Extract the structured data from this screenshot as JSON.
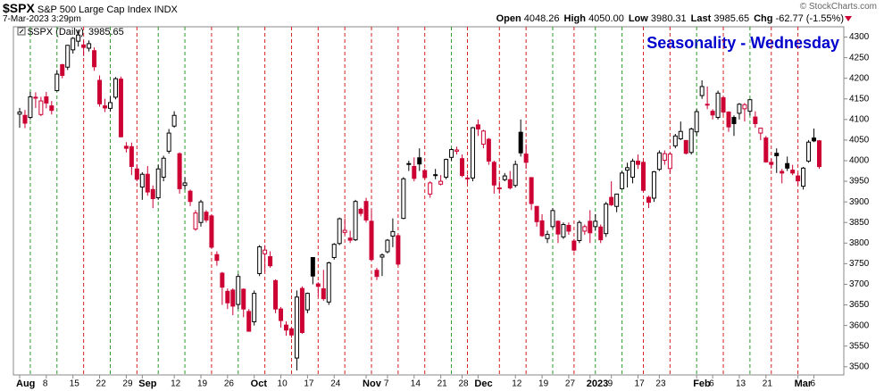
{
  "header": {
    "symbol": "$SPX",
    "name": "S&P 500 Large Cap Index",
    "exchange": "INDX",
    "timestamp": "7-Mar-2023 3:29pm",
    "copyright": "© StockCharts.com",
    "stats": [
      {
        "label": "Open",
        "value": "4048.26"
      },
      {
        "label": "High",
        "value": "4050.00"
      },
      {
        "label": "Low",
        "value": "3980.31"
      },
      {
        "label": "Last",
        "value": "3985.65"
      },
      {
        "label": "Chg",
        "value": "-62.77 (-1.55%)"
      }
    ]
  },
  "chart_data": {
    "type": "candlestick",
    "title": "Seasonality - Wednesday",
    "legend": "$SPX (Daily)",
    "legend_value": 3985.65,
    "up_color": "#000000",
    "down_color": "#cc0033",
    "ylim": [
      3480,
      4325
    ],
    "yticks": [
      3500,
      3550,
      3600,
      3650,
      3700,
      3750,
      3800,
      3850,
      3900,
      3950,
      4000,
      4050,
      4100,
      4150,
      4200,
      4250,
      4300
    ],
    "categories": [
      "Aug",
      null,
      null,
      null,
      null,
      "8",
      null,
      null,
      null,
      null,
      "15",
      null,
      null,
      null,
      null,
      "22",
      null,
      null,
      null,
      null,
      "29",
      null,
      null,
      "Sep",
      null,
      null,
      null,
      null,
      null,
      "12",
      null,
      null,
      null,
      null,
      "19",
      null,
      null,
      null,
      null,
      "26",
      null,
      null,
      null,
      null,
      "Oct",
      null,
      null,
      null,
      null,
      "10",
      null,
      null,
      null,
      null,
      "17",
      null,
      null,
      null,
      null,
      "24",
      null,
      null,
      null,
      null,
      null,
      "Nov",
      null,
      null,
      null,
      "7",
      null,
      null,
      null,
      null,
      "14",
      null,
      null,
      null,
      null,
      "21",
      null,
      null,
      null,
      "28",
      null,
      null,
      "Dec",
      null,
      null,
      null,
      null,
      null,
      null,
      "12",
      null,
      null,
      null,
      null,
      "19",
      null,
      null,
      null,
      null,
      "27",
      null,
      null,
      null,
      "2023",
      null,
      null,
      null,
      "9",
      null,
      null,
      null,
      null,
      "17",
      null,
      null,
      null,
      "23",
      null,
      null,
      null,
      null,
      null,
      null,
      "Feb",
      null,
      null,
      "6",
      null,
      null,
      null,
      null,
      "13",
      null,
      null,
      null,
      null,
      "21",
      null,
      null,
      null,
      null,
      null,
      "Mar",
      null,
      null,
      "6",
      null
    ],
    "open": [
      4113,
      4110,
      4105,
      4154,
      4112,
      4155,
      4133,
      4170,
      4233,
      4227,
      4269,
      4290,
      4281,
      4273,
      4267,
      4195,
      4133,
      4127,
      4154,
      4198,
      4035,
      4034,
      3980,
      3936,
      3967,
      3930,
      3910,
      3960,
      4023,
      4084,
      4017,
      3940,
      3926,
      3834,
      3850,
      3875,
      3866,
      3772,
      3727,
      3683,
      3686,
      3651,
      3688,
      3634,
      3609,
      3726,
      3774,
      3767,
      3709,
      3640,
      3601,
      3592,
      3521,
      3690,
      3638,
      3765,
      3701,
      3689,
      3657,
      3765,
      3799,
      3826,
      3812,
      3808,
      3882,
      3901,
      3853,
      3734,
      3766,
      3779,
      3817,
      3818,
      3860,
      3993,
      3986,
      4007,
      3976,
      3919,
      3966,
      3943,
      3960,
      4008,
      4023,
      4005,
      3957,
      3958,
      4087,
      4040,
      4052,
      3996,
      3934,
      3954,
      3954,
      3940,
      4069,
      4016,
      3959,
      3889,
      3854,
      3811,
      3840,
      3853,
      3815,
      3843,
      3805,
      3806,
      3829,
      3853,
      3840,
      3839,
      3823,
      3911,
      3889,
      3932,
      3977,
      3960,
      3999,
      3996,
      3911,
      3909,
      3979,
      4001,
      3981,
      4036,
      4053,
      4049,
      4020,
      4070,
      4158,
      4137,
      4120,
      4105,
      4153,
      4118,
      4105,
      4115,
      4126,
      4120,
      4106,
      4067,
      4055,
      3996,
      4018,
      3974,
      3993,
      3977,
      3963,
      3938,
      3999,
      4055,
      4048.26
    ],
    "high": [
      4128,
      4123,
      4167,
      4166,
      4155,
      4167,
      4145,
      4220,
      4235,
      4281,
      4300,
      4318,
      4291,
      4292,
      4275,
      4207,
      4150,
      4156,
      4203,
      4204,
      4045,
      4044,
      3991,
      3972,
      3987,
      3940,
      3990,
      4012,
      4077,
      4120,
      4020,
      3960,
      3930,
      3880,
      3905,
      3880,
      3870,
      3780,
      3730,
      3690,
      3690,
      3725,
      3690,
      3640,
      3685,
      3795,
      3795,
      3780,
      3712,
      3645,
      3610,
      3595,
      3685,
      3695,
      3680,
      3765,
      3705,
      3735,
      3755,
      3800,
      3862,
      3860,
      3830,
      3905,
      3886,
      3910,
      3880,
      3740,
      3775,
      3810,
      3860,
      3820,
      3960,
      4000,
      4008,
      4030,
      3980,
      3950,
      3980,
      3965,
      4005,
      4030,
      4034,
      4015,
      3966,
      4082,
      4100,
      4075,
      4055,
      4000,
      3950,
      3970,
      3975,
      4000,
      4100,
      4040,
      3960,
      3890,
      3870,
      3830,
      3885,
      3855,
      3850,
      3850,
      3810,
      3855,
      3845,
      3880,
      3870,
      3845,
      3900,
      3950,
      3920,
      3975,
      3995,
      4005,
      4015,
      4000,
      3915,
      3975,
      4025,
      4025,
      4020,
      4065,
      4095,
      4050,
      4080,
      4125,
      4195,
      4180,
      4125,
      4170,
      4155,
      4120,
      4110,
      4140,
      4140,
      4150,
      4120,
      4080,
      4060,
      4005,
      4030,
      3980,
      4010,
      3990,
      3970,
      3985,
      4050,
      4078,
      4050
    ],
    "low": [
      4080,
      4079,
      4100,
      4128,
      4108,
      4127,
      4112,
      4168,
      4200,
      4220,
      4260,
      4277,
      4254,
      4265,
      4218,
      4131,
      4118,
      4119,
      4149,
      4057,
      4020,
      3965,
      3950,
      3905,
      3915,
      3885,
      3905,
      3950,
      4017,
      4080,
      3920,
      3930,
      3890,
      3830,
      3840,
      3850,
      3788,
      3745,
      3650,
      3640,
      3625,
      3640,
      3620,
      3585,
      3600,
      3720,
      3730,
      3740,
      3630,
      3595,
      3575,
      3570,
      3491,
      3580,
      3630,
      3700,
      3670,
      3660,
      3650,
      3760,
      3795,
      3820,
      3800,
      3805,
      3865,
      3850,
      3756,
      3710,
      3720,
      3775,
      3790,
      3745,
      3858,
      3975,
      3950,
      3975,
      3955,
      3910,
      3955,
      3940,
      3955,
      4000,
      4015,
      3960,
      3945,
      3950,
      4060,
      4030,
      3990,
      3920,
      3920,
      3950,
      3930,
      3935,
      4010,
      3980,
      3880,
      3840,
      3815,
      3800,
      3835,
      3800,
      3810,
      3820,
      3780,
      3800,
      3820,
      3800,
      3830,
      3800,
      3815,
      3890,
      3875,
      3930,
      3935,
      3945,
      3980,
      3925,
      3885,
      3900,
      3975,
      3990,
      3970,
      4030,
      4050,
      4015,
      4015,
      4060,
      4150,
      4125,
      4100,
      4100,
      4110,
      4070,
      4060,
      4100,
      4095,
      4110,
      4080,
      4050,
      3995,
      3980,
      3970,
      3945,
      3975,
      3965,
      3940,
      3930,
      3995,
      4045,
      3980.31
    ],
    "close": [
      4118,
      4091,
      4155,
      4152,
      4145,
      4140,
      4122,
      4210,
      4207,
      4280,
      4297,
      4305,
      4275,
      4284,
      4228,
      4138,
      4128,
      4141,
      4199,
      4058,
      4030,
      3986,
      3955,
      3967,
      3924,
      3908,
      3980,
      4006,
      4067,
      4110,
      3932,
      3946,
      3901,
      3873,
      3900,
      3856,
      3790,
      3758,
      3693,
      3655,
      3647,
      3719,
      3640,
      3586,
      3678,
      3791,
      3783,
      3745,
      3640,
      3612,
      3589,
      3577,
      3669,
      3583,
      3678,
      3720,
      3695,
      3665,
      3752,
      3797,
      3859,
      3831,
      3807,
      3901,
      3872,
      3856,
      3760,
      3719,
      3771,
      3807,
      3828,
      3749,
      3956,
      3993,
      3957,
      3992,
      3959,
      3946,
      3965,
      3950,
      4003,
      4027,
      4026,
      3964,
      3958,
      4080,
      4077,
      4072,
      3999,
      3941,
      3933,
      3963,
      3934,
      3991,
      4019,
      3996,
      3896,
      3852,
      3818,
      3821,
      3879,
      3822,
      3845,
      3829,
      3783,
      3850,
      3840,
      3825,
      3853,
      3808,
      3895,
      3893,
      3919,
      3970,
      3983,
      3999,
      3991,
      3928,
      3899,
      3973,
      4019,
      4017,
      4016,
      4060,
      4071,
      4018,
      4077,
      4119,
      4180,
      4136,
      4111,
      4164,
      4118,
      4082,
      4090,
      4137,
      4136,
      4148,
      4090,
      4079,
      3997,
      3991,
      4012,
      3970,
      3982,
      3970,
      3951,
      3982,
      4045,
      4048,
      3985.65
    ]
  }
}
